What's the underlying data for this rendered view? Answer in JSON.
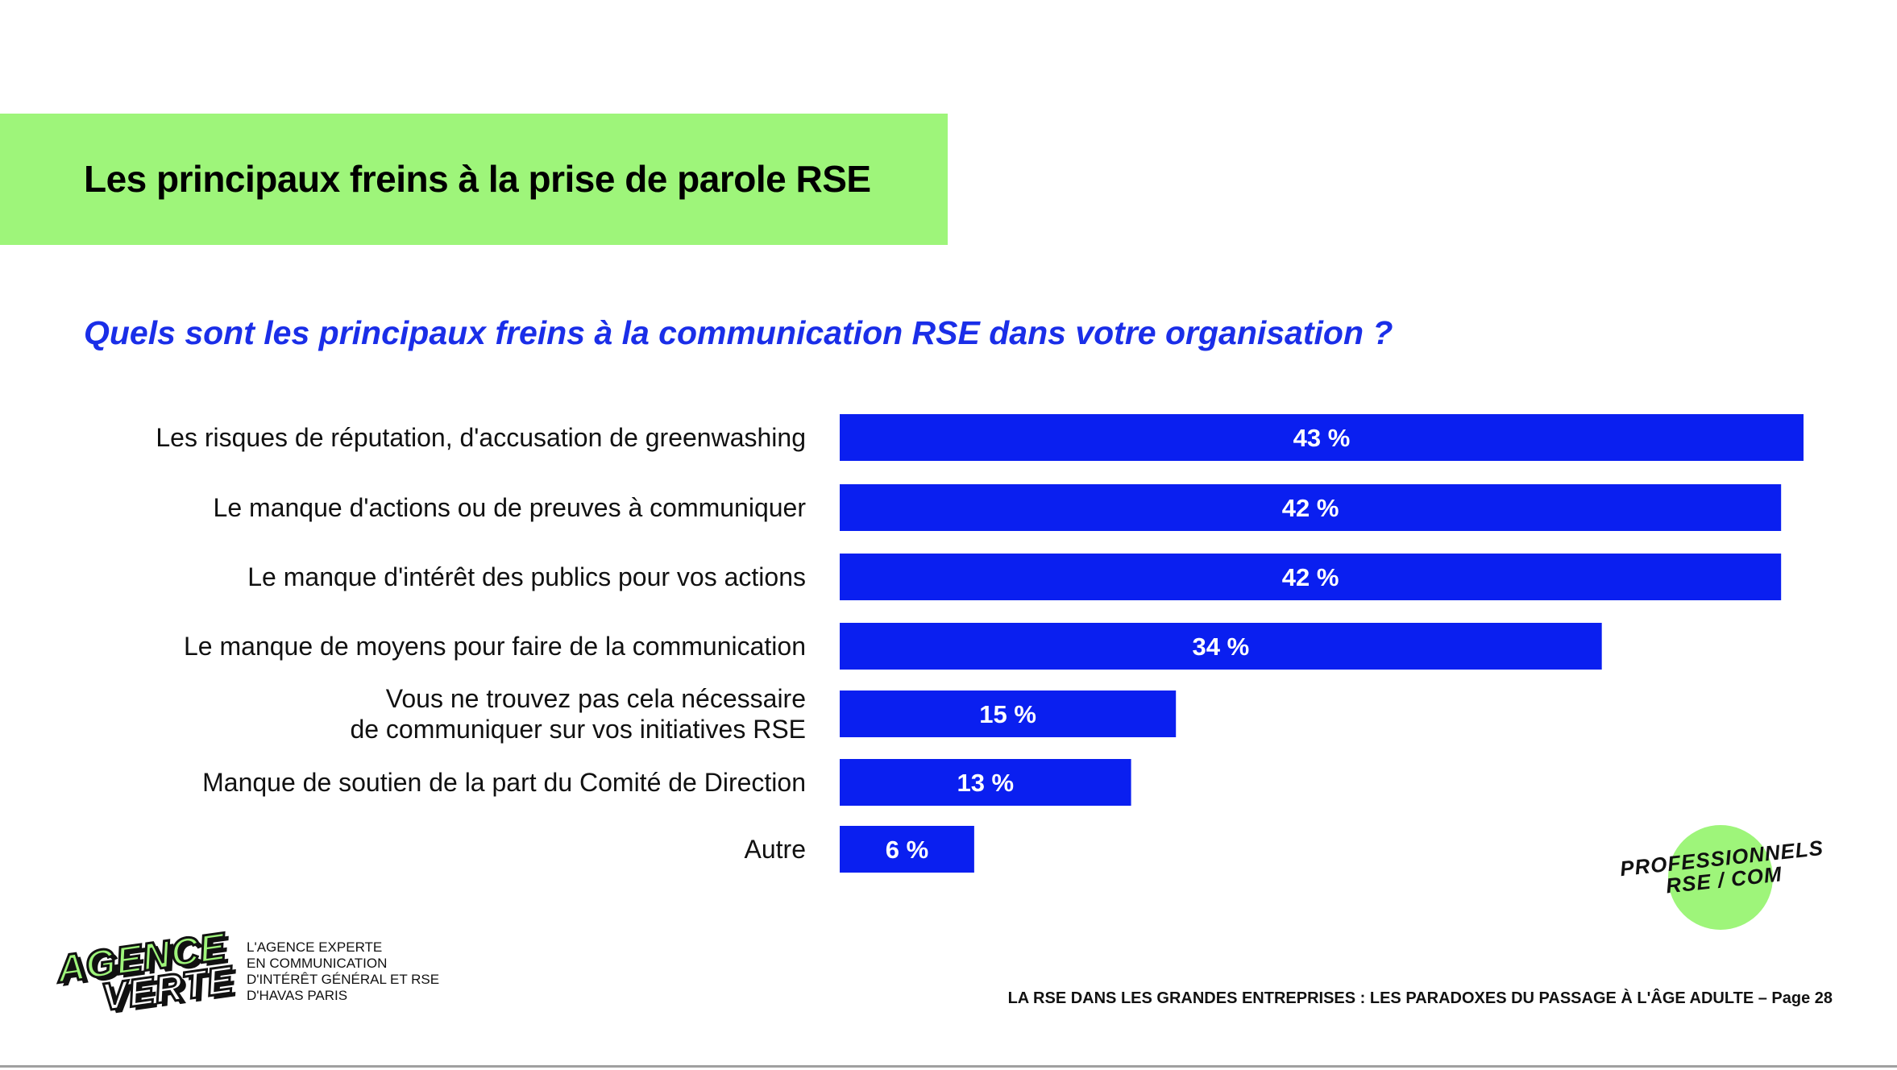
{
  "header": {
    "title": "Les principaux freins à la prise de parole RSE"
  },
  "question": "Quels sont les principaux freins à la communication RSE dans votre organisation ?",
  "chart_data": {
    "type": "bar",
    "orientation": "horizontal",
    "categories": [
      [
        "Les risques de réputation, d'accusation de greenwashing"
      ],
      [
        "Le manque d'actions ou de preuves à communiquer"
      ],
      [
        "Le manque d'intérêt des publics pour vos actions"
      ],
      [
        "Le manque de moyens pour faire de la communication"
      ],
      [
        "Vous ne trouvez pas cela nécessaire",
        "de communiquer sur vos initiatives RSE"
      ],
      [
        "Manque de soutien de la part du Comité de Direction"
      ],
      [
        "Autre"
      ]
    ],
    "values": [
      43,
      42,
      42,
      34,
      15,
      13,
      6
    ],
    "value_labels": [
      "43 %",
      "42 %",
      "42 %",
      "34 %",
      "15 %",
      "13 %",
      "6 %"
    ],
    "xlim": [
      0,
      43
    ],
    "bar_color": "#0a1ff0",
    "grid": false,
    "legend": "none"
  },
  "badge": {
    "line1": "PROFESSIONNELS",
    "line2": "RSE / COM"
  },
  "logo": {
    "line1": "AGENCE",
    "line2": "VERTE"
  },
  "agency": {
    "lines": [
      "L'AGENCE EXPERTE",
      "EN COMMUNICATION",
      "D'INTÉRÊT GÉNÉRAL ET RSE",
      "D'HAVAS PARIS"
    ]
  },
  "footer": "LA RSE DANS LES GRANDES ENTREPRISES : LES PARADOXES DU PASSAGE À L'ÂGE ADULTE – Page 28",
  "colors": {
    "accent_green": "#9ef57a",
    "accent_blue": "#1a2ee8",
    "bar_blue": "#0a1ff0"
  }
}
